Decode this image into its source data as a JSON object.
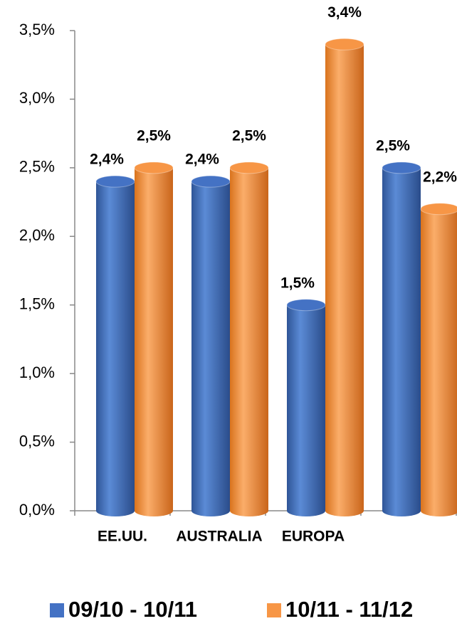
{
  "chart_data": {
    "type": "bar",
    "categories": [
      "EE.UU.",
      "AUSTRALIA",
      "EUROPA",
      null
    ],
    "series": [
      {
        "name": "09/10 - 10/11",
        "color": "#4472c4",
        "values": [
          2.4,
          2.4,
          1.5,
          2.5
        ],
        "value_labels": [
          "2,4%",
          "2,4%",
          "1,5%",
          "2,5%"
        ]
      },
      {
        "name": "10/11 - 11/12",
        "color": "#f79646",
        "values": [
          2.5,
          2.5,
          3.4,
          2.2
        ],
        "value_labels": [
          "2,5%",
          "2,5%",
          "3,4%",
          "2,2%"
        ]
      }
    ],
    "ylim": [
      0,
      3.5
    ],
    "yticks": [
      {
        "value": 0,
        "label": "0,0%"
      },
      {
        "value": 0.5,
        "label": "0,5%"
      },
      {
        "value": 1,
        "label": "1,0%"
      },
      {
        "value": 1.5,
        "label": "1,5%"
      },
      {
        "value": 2,
        "label": "2,0%"
      },
      {
        "value": 2.5,
        "label": "2,5%"
      },
      {
        "value": 3,
        "label": "3,0%"
      },
      {
        "value": 3.5,
        "label": "3,5%"
      }
    ],
    "legend": "bottom"
  }
}
